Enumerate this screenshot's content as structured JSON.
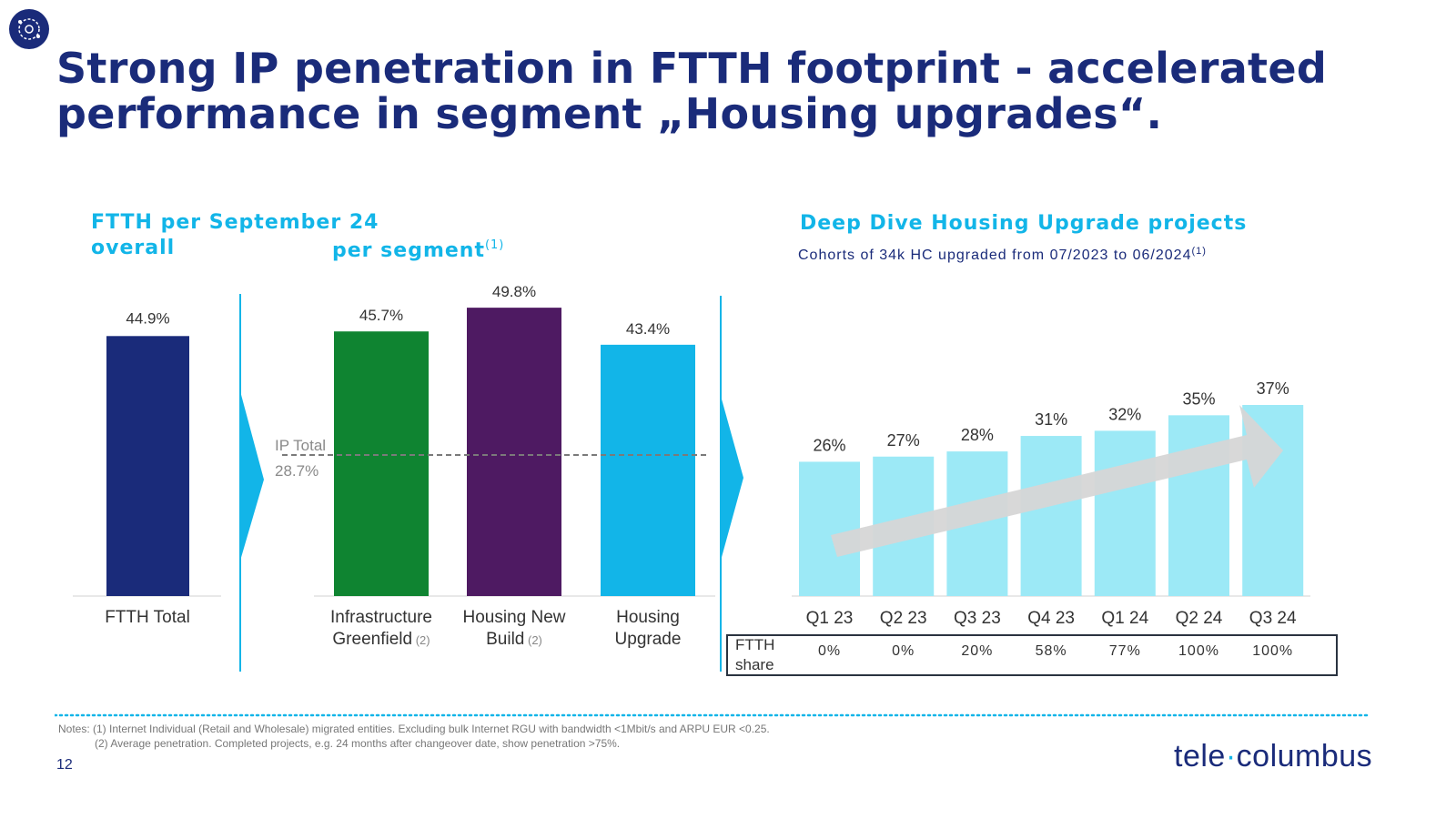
{
  "title": "Strong IP penetration in FTTH footprint - accelerated performance in segment „Housing upgrades“.",
  "left_heading": "FTTH per September 24",
  "overall_label": "overall",
  "segment_label": "per segment",
  "segment_note": "(1)",
  "deep_dive_heading": "Deep Dive Housing Upgrade projects",
  "deep_dive_subtitle": "Cohorts of 34k HC upgraded from 07/2023 to 06/2024",
  "deep_dive_note": "(1)",
  "ftth_share_label_1": "FTTH",
  "ftth_share_label_2": "share",
  "notes_line1": "Notes: (1) Internet Individual (Retail and Wholesale) migrated entities. Excluding bulk Internet RGU with bandwidth <1Mbit/s and ARPU EUR <0.25.",
  "notes_line2": "(2) Average penetration. Completed projects, e.g. 24 months after changeover date, show penetration >75%.",
  "page_number": "12",
  "brand_part1": "tele",
  "brand_dot": "·",
  "brand_part2": "columbus",
  "colors": {
    "navy": "#1a2b7a",
    "cyan": "#12b5e8",
    "green": "#0f8431",
    "purple": "#4e1a62",
    "light_cyan": "#9ce9f6",
    "arrow_gray": "#d6d6d6"
  },
  "chart_data": [
    {
      "type": "bar",
      "title": "FTTH per September 24 overall",
      "categories": [
        "FTTH Total"
      ],
      "values": [
        44.9
      ],
      "value_labels": [
        "44.9%"
      ],
      "ylim": [
        0,
        55
      ]
    },
    {
      "type": "bar",
      "title": "per segment",
      "categories": [
        "Infrastructure Greenfield",
        "Housing New Build",
        "Housing Upgrade"
      ],
      "category_lines": [
        [
          "Infrastructure",
          "Greenfield"
        ],
        [
          "Housing New",
          "Build"
        ],
        [
          "Housing",
          "Upgrade"
        ]
      ],
      "category_notes": [
        "(2)",
        "(2)",
        ""
      ],
      "values": [
        45.7,
        49.8,
        43.4
      ],
      "value_labels": [
        "45.7%",
        "49.8%",
        "43.4%"
      ],
      "reference_line": {
        "label": "IP Total",
        "value": 28.7,
        "value_label": "28.7%"
      },
      "ylim": [
        0,
        55
      ]
    },
    {
      "type": "bar",
      "title": "Deep Dive Housing Upgrade projects",
      "categories": [
        "Q1 23",
        "Q2 23",
        "Q3 23",
        "Q4 23",
        "Q1 24",
        "Q2 24",
        "Q3 24"
      ],
      "values": [
        26,
        27,
        28,
        31,
        32,
        35,
        37
      ],
      "value_labels": [
        "26%",
        "27%",
        "28%",
        "31%",
        "32%",
        "35%",
        "37%"
      ],
      "ftth_share": [
        "0%",
        "0%",
        "20%",
        "58%",
        "77%",
        "100%",
        "100%"
      ],
      "ylim": [
        0,
        46
      ]
    }
  ]
}
